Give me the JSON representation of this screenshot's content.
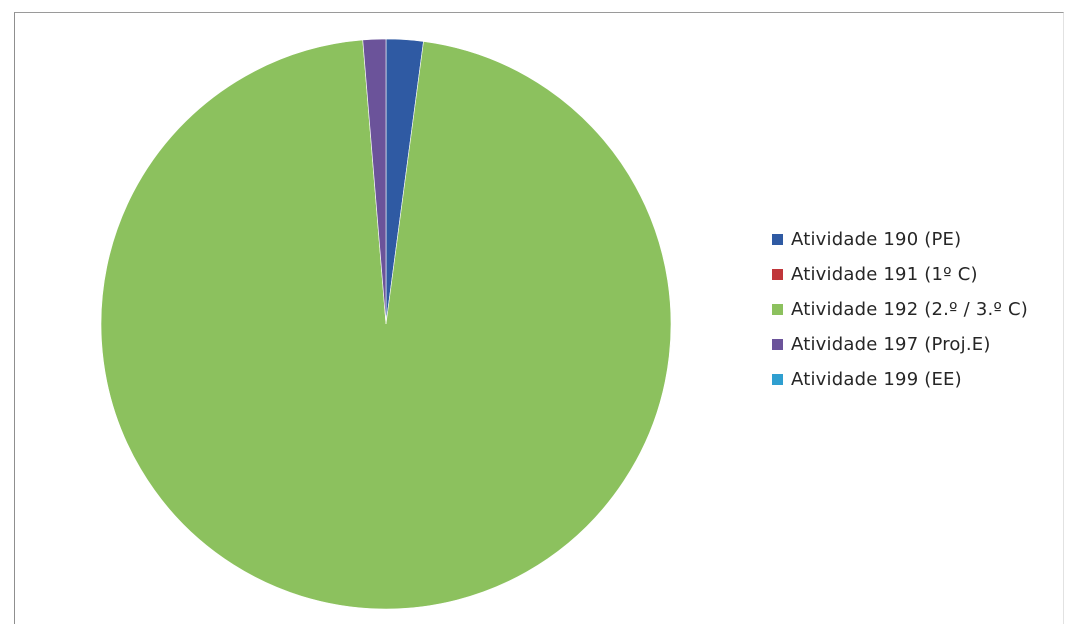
{
  "chart_data": {
    "type": "pie",
    "title": "",
    "categories": [
      "Atividade 190 (PE)",
      "Atividade 191 (1º C)",
      "Atividade 192 (2.º / 3.º C)",
      "Atividade 197 (Proj.E)",
      "Atividade 199 (EE)"
    ],
    "values": [
      2.1,
      0.0,
      96.6,
      1.3,
      0.0
    ],
    "colors": [
      "#2f5aa3",
      "#c0363a",
      "#8cc15e",
      "#6b539a",
      "#2f9fd0"
    ],
    "legend": "right",
    "data_labels": false
  }
}
